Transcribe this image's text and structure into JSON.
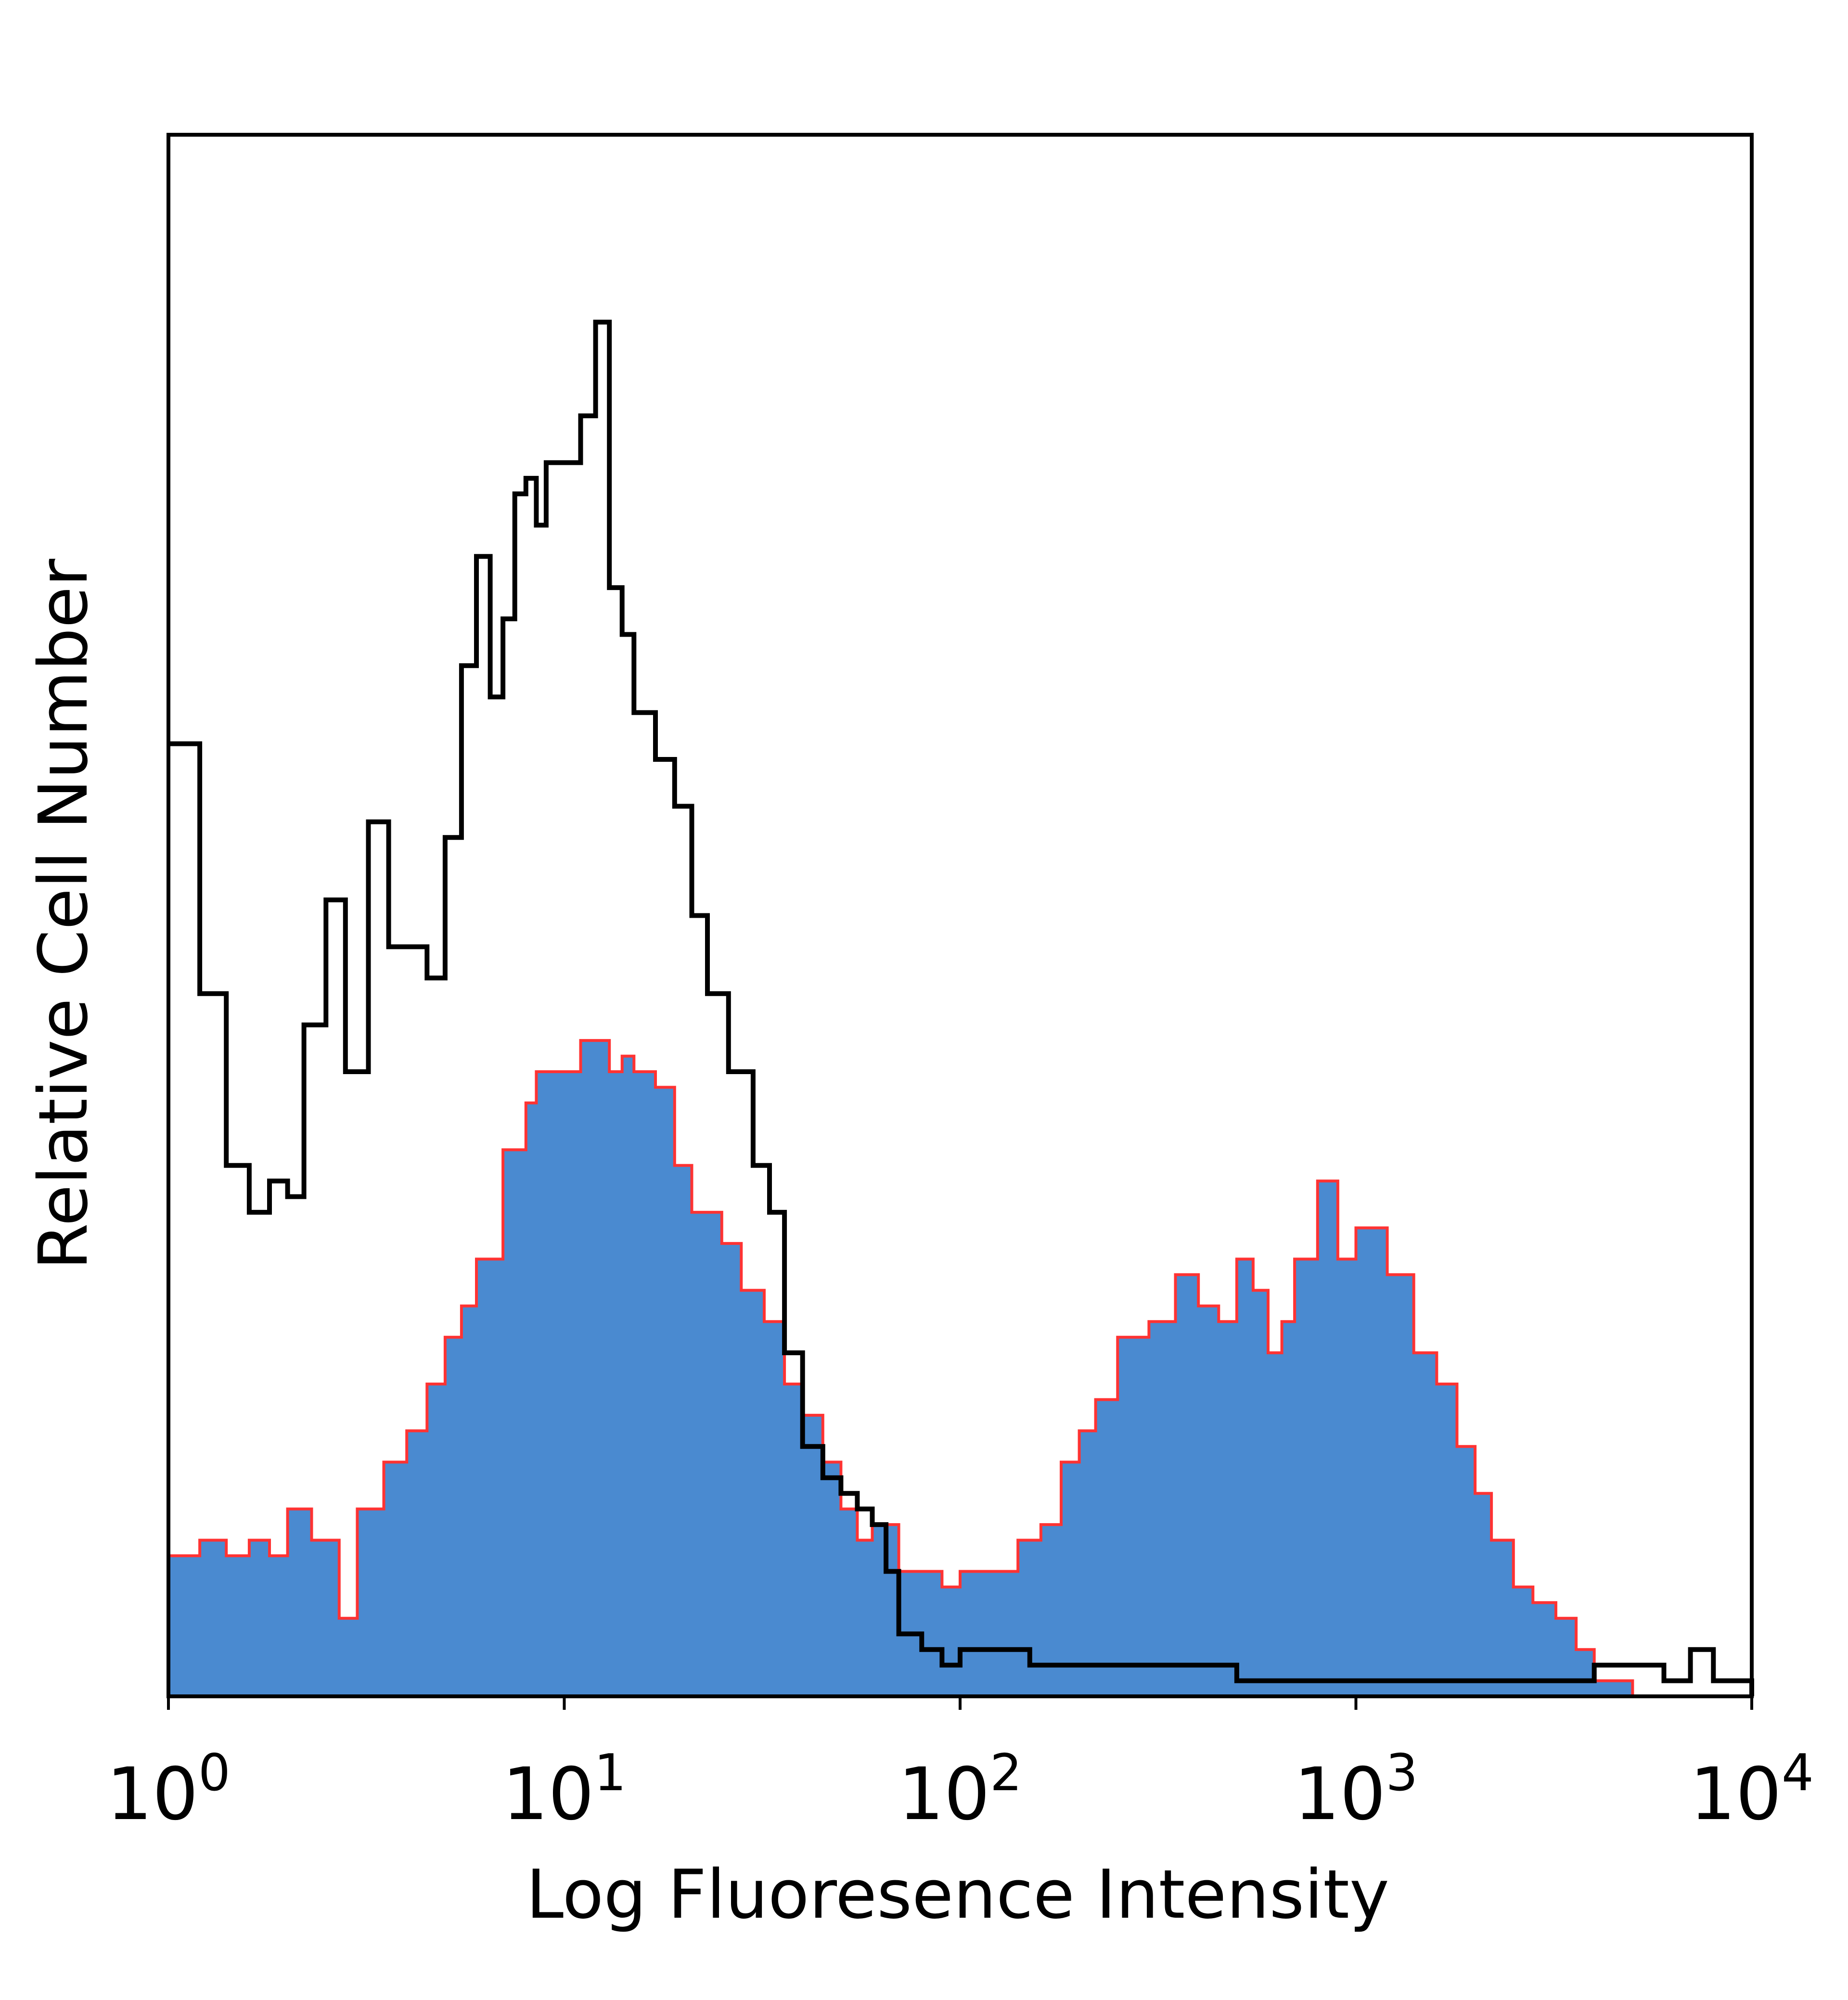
{
  "chart_data": {
    "type": "area",
    "title": "",
    "xlabel": "Log Fluoresence Intensity",
    "ylabel": "Relative Cell Number",
    "x_scale": "log",
    "xlim": [
      1,
      10000
    ],
    "ylim": [
      0,
      100
    ],
    "x_ticks": [
      {
        "base": "10",
        "exp": "0",
        "value": 1
      },
      {
        "base": "10",
        "exp": "1",
        "value": 10
      },
      {
        "base": "10",
        "exp": "2",
        "value": 100
      },
      {
        "base": "10",
        "exp": "3",
        "value": 1000
      },
      {
        "base": "10",
        "exp": "4",
        "value": 10000
      }
    ],
    "grid": false,
    "legend": "none",
    "series": [
      {
        "style": "line",
        "color": "#000000",
        "points": [
          [
            1.0,
            61
          ],
          [
            1.2,
            45
          ],
          [
            1.4,
            34
          ],
          [
            1.6,
            31
          ],
          [
            1.8,
            33
          ],
          [
            2.0,
            32
          ],
          [
            2.2,
            43
          ],
          [
            2.5,
            51
          ],
          [
            2.8,
            40
          ],
          [
            3.2,
            56
          ],
          [
            3.6,
            48
          ],
          [
            4.0,
            48
          ],
          [
            4.5,
            46
          ],
          [
            5.0,
            55
          ],
          [
            5.5,
            66
          ],
          [
            6.0,
            73
          ],
          [
            6.5,
            64
          ],
          [
            7.0,
            69
          ],
          [
            7.5,
            77
          ],
          [
            8.0,
            78
          ],
          [
            8.5,
            75
          ],
          [
            9.0,
            79
          ],
          [
            10.0,
            79
          ],
          [
            11.0,
            82
          ],
          [
            12.0,
            88
          ],
          [
            13.0,
            71
          ],
          [
            14.0,
            68
          ],
          [
            15.0,
            63
          ],
          [
            17.0,
            60
          ],
          [
            19.0,
            57
          ],
          [
            21.0,
            50
          ],
          [
            23.0,
            45
          ],
          [
            26.0,
            40
          ],
          [
            30.0,
            34
          ],
          [
            33.0,
            31
          ],
          [
            36.0,
            22
          ],
          [
            40.0,
            16
          ],
          [
            45.0,
            14
          ],
          [
            50.0,
            13
          ],
          [
            55.0,
            12
          ],
          [
            60.0,
            11
          ],
          [
            65.0,
            8
          ],
          [
            70.0,
            4
          ],
          [
            80.0,
            3
          ],
          [
            90.0,
            2
          ],
          [
            100.0,
            3
          ],
          [
            150.0,
            2
          ],
          [
            200.0,
            2
          ],
          [
            300.0,
            2
          ],
          [
            400.0,
            2
          ],
          [
            500.0,
            1
          ],
          [
            700.0,
            1
          ],
          [
            1000.0,
            1
          ],
          [
            2000.0,
            1
          ],
          [
            3000.0,
            1
          ],
          [
            4000.0,
            2
          ],
          [
            5000.0,
            2
          ],
          [
            6000.0,
            1
          ],
          [
            7000.0,
            3
          ],
          [
            8000.0,
            1
          ],
          [
            10000.0,
            0
          ]
        ]
      },
      {
        "style": "filled",
        "color": "#4a8ad0",
        "edge_color": "#ff3333",
        "points": [
          [
            1.0,
            9
          ],
          [
            1.2,
            10
          ],
          [
            1.4,
            9
          ],
          [
            1.6,
            10
          ],
          [
            1.8,
            9
          ],
          [
            2.0,
            12
          ],
          [
            2.3,
            10
          ],
          [
            2.7,
            5
          ],
          [
            3.0,
            12
          ],
          [
            3.5,
            15
          ],
          [
            4.0,
            17
          ],
          [
            4.5,
            20
          ],
          [
            5.0,
            23
          ],
          [
            5.5,
            25
          ],
          [
            6.0,
            28
          ],
          [
            7.0,
            35
          ],
          [
            8.0,
            38
          ],
          [
            8.5,
            40
          ],
          [
            10.0,
            40
          ],
          [
            11.0,
            42
          ],
          [
            12.0,
            42
          ],
          [
            13.0,
            40
          ],
          [
            14.0,
            41
          ],
          [
            15.0,
            40
          ],
          [
            17.0,
            39
          ],
          [
            19.0,
            34
          ],
          [
            21.0,
            31
          ],
          [
            25.0,
            29
          ],
          [
            28.0,
            26
          ],
          [
            32.0,
            24
          ],
          [
            36.0,
            20
          ],
          [
            40.0,
            18
          ],
          [
            45.0,
            15
          ],
          [
            50.0,
            12
          ],
          [
            55.0,
            10
          ],
          [
            60.0,
            11
          ],
          [
            70.0,
            8
          ],
          [
            80.0,
            8
          ],
          [
            90.0,
            7
          ],
          [
            100.0,
            8
          ],
          [
            120.0,
            8
          ],
          [
            140.0,
            10
          ],
          [
            160.0,
            11
          ],
          [
            180.0,
            15
          ],
          [
            200.0,
            17
          ],
          [
            220.0,
            19
          ],
          [
            250.0,
            23
          ],
          [
            300.0,
            24
          ],
          [
            350.0,
            27
          ],
          [
            400.0,
            25
          ],
          [
            450.0,
            24
          ],
          [
            500.0,
            28
          ],
          [
            550.0,
            26
          ],
          [
            600.0,
            22
          ],
          [
            650.0,
            24
          ],
          [
            700.0,
            28
          ],
          [
            800.0,
            33
          ],
          [
            900.0,
            28
          ],
          [
            1000.0,
            30
          ],
          [
            1200.0,
            27
          ],
          [
            1400.0,
            22
          ],
          [
            1600.0,
            20
          ],
          [
            1800.0,
            16
          ],
          [
            2000.0,
            13
          ],
          [
            2200.0,
            10
          ],
          [
            2500.0,
            7
          ],
          [
            2800.0,
            6
          ],
          [
            3200.0,
            5
          ],
          [
            3600.0,
            3
          ],
          [
            4000.0,
            1
          ],
          [
            5000.0,
            0
          ]
        ]
      }
    ]
  }
}
